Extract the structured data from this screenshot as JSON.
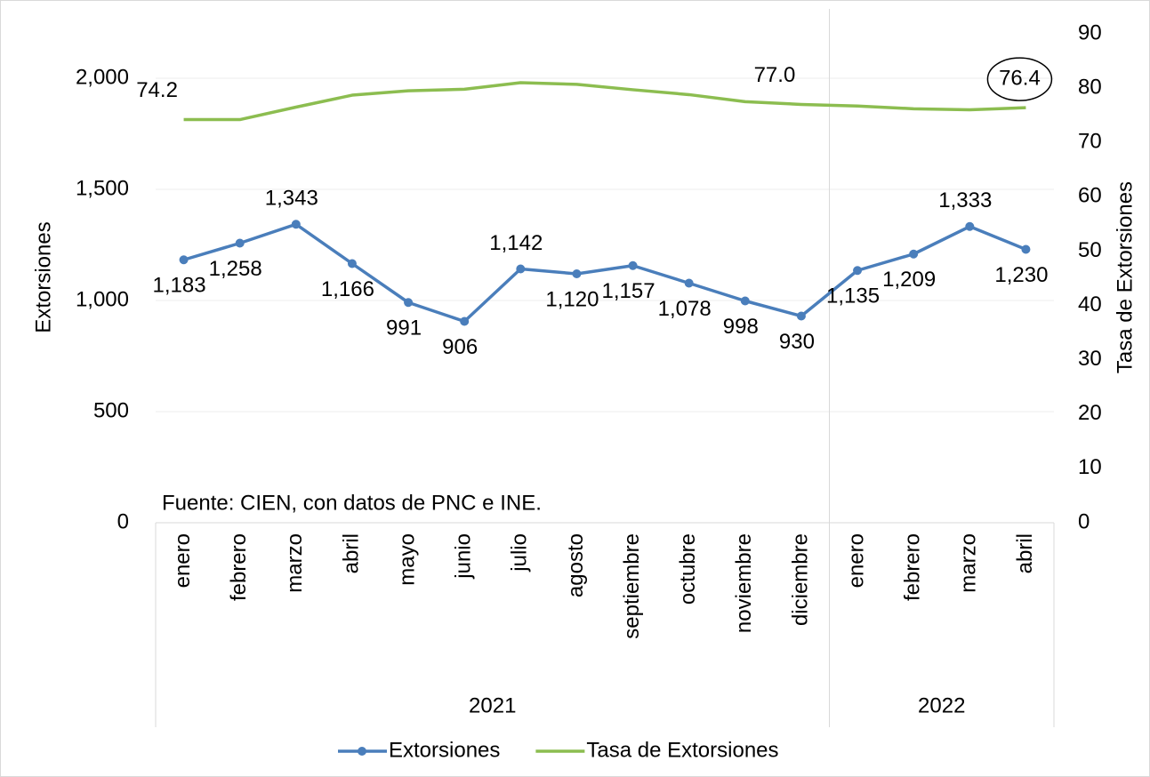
{
  "chart_data": {
    "type": "line",
    "categories": [
      "enero",
      "febrero",
      "marzo",
      "abril",
      "mayo",
      "junio",
      "julio",
      "agosto",
      "septiembre",
      "octubre",
      "noviembre",
      "diciembre",
      "enero",
      "febrero",
      "marzo",
      "abril"
    ],
    "x_groups": [
      {
        "label": "2021",
        "span": 12
      },
      {
        "label": "2022",
        "span": 4
      }
    ],
    "ylabel": "Extorsiones",
    "y2label": "Tasa de Extorsiones",
    "annotation": "Fuente: CIEN, con datos de PNC e INE.",
    "ylim": [
      0,
      2200
    ],
    "yticks": [
      0,
      {
        "value": 500,
        "label": "500"
      },
      {
        "value": 1000,
        "label": "1,000"
      },
      {
        "value": 1500,
        "label": "1,500"
      },
      {
        "value": 2000,
        "label": "2,000"
      }
    ],
    "y2lim": [
      0,
      90
    ],
    "y2ticks": [
      0,
      10,
      20,
      30,
      40,
      50,
      60,
      70,
      80,
      90
    ],
    "grid": true,
    "legend": "bottom",
    "series": [
      {
        "name": "Extorsiones",
        "color": "#4a7ebb",
        "markers": true,
        "values": [
          1183,
          1258,
          1343,
          1166,
          991,
          906,
          1142,
          1120,
          1157,
          1078,
          998,
          930,
          1135,
          1209,
          1333,
          1230
        ],
        "value_labels": [
          "1,183",
          "1,258",
          "1,343",
          "1,166",
          "991",
          "906",
          "1,142",
          "1,120",
          "1,157",
          "1,078",
          "998",
          "930",
          "1,135",
          "1,209",
          "1,333",
          "1,230"
        ]
      },
      {
        "name": "Tasa de Extorsiones",
        "color": "#8cbd50",
        "axis": "y2",
        "markers": false,
        "values": [
          74.2,
          74.2,
          76.5,
          78.7,
          79.5,
          79.8,
          81.0,
          80.7,
          79.7,
          78.8,
          77.5,
          77.0,
          76.7,
          76.2,
          76.0,
          76.4
        ],
        "value_labels": [
          "74.2",
          null,
          null,
          null,
          null,
          null,
          null,
          null,
          null,
          null,
          null,
          "77.0",
          null,
          null,
          null,
          "76.4"
        ]
      }
    ]
  }
}
